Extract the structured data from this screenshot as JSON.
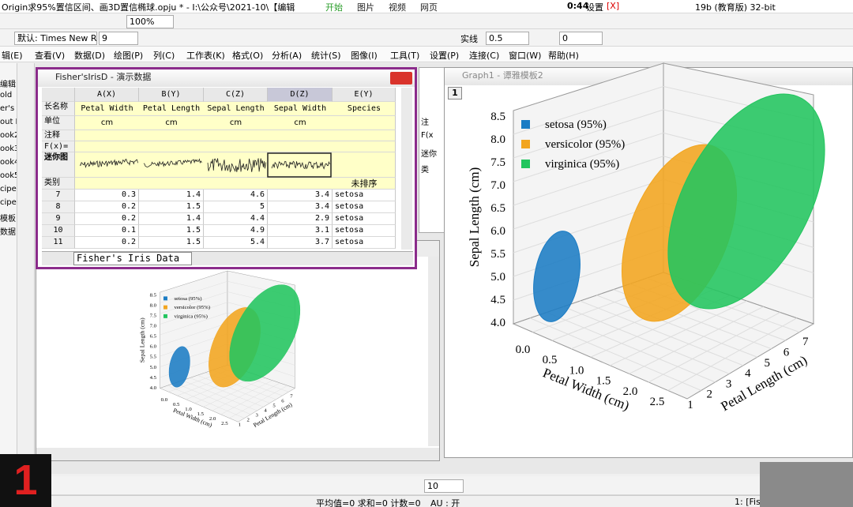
{
  "app_title": "Origin求95%置信区间、画3D置信椭球.opju * - I:\\公众号\\2021-10\\【编辑",
  "top_overlay": {
    "items": [
      "开始",
      "图片",
      "视频",
      "网页"
    ],
    "time": "0:44",
    "settings": "设置",
    "close": "[X]",
    "edition": "19b (教育版) 32-bit"
  },
  "toolbar": {
    "zoom": "100%",
    "font": "默认: Times New R",
    "font_size": "9",
    "line_style": "实线",
    "line_width": "0.5",
    "field": "0",
    "size_field": "10"
  },
  "menu": [
    "辑(E)",
    "查看(V)",
    "数据(D)",
    "绘图(P)",
    "列(C)",
    "工作表(K)",
    "格式(O)",
    "分析(A)",
    "统计(S)",
    "图像(I)",
    "工具(T)",
    "设置(P)",
    "连接(C)",
    "窗口(W)",
    "帮助(H)"
  ],
  "left_panel": [
    "编辑",
    "old",
    "er's",
    "out I",
    "ook2",
    "ook3",
    "ook4",
    "ook5",
    "cipe",
    "cipe",
    "模板",
    "数据"
  ],
  "worksheet": {
    "title": "Fisher'sIrisD - 演示数据",
    "columns": [
      "A(X)",
      "B(Y)",
      "C(Z)",
      "D(Z)",
      "E(Y)"
    ],
    "row_headers": [
      "长名称",
      "单位",
      "注释",
      "F(x)=",
      "迷你图",
      "类别"
    ],
    "long_names": [
      "Petal Width",
      "Petal Length",
      "Sepal Length",
      "Sepal Width",
      "Species"
    ],
    "units": [
      "cm",
      "cm",
      "cm",
      "cm"
    ],
    "category_note": "未排序",
    "rows": [
      {
        "index": "7",
        "cells": [
          "0.3",
          "1.4",
          "4.6",
          "3.4",
          "setosa"
        ]
      },
      {
        "index": "8",
        "cells": [
          "0.2",
          "1.5",
          "5",
          "3.4",
          "setosa"
        ]
      },
      {
        "index": "9",
        "cells": [
          "0.2",
          "1.4",
          "4.4",
          "2.9",
          "setosa"
        ]
      },
      {
        "index": "10",
        "cells": [
          "0.1",
          "1.5",
          "4.9",
          "3.1",
          "setosa"
        ]
      },
      {
        "index": "11",
        "cells": [
          "0.2",
          "1.5",
          "5.4",
          "3.7",
          "setosa"
        ]
      }
    ],
    "sheet_tab": "Fisher's Iris Data"
  },
  "back_window_labels": [
    "注",
    "F(x",
    "迷你",
    "类"
  ],
  "graph": {
    "title": "Graph1 - 谭雅模板2",
    "layer": "1",
    "legend": [
      "setosa (95%)",
      "versicolor (95%)",
      "virginica (95%)"
    ],
    "z_label": "Sepal Length (cm)",
    "x_label": "Petal Width (cm)",
    "y_label": "Petal Length (cm)",
    "zticks": [
      "4.0",
      "4.5",
      "5.0",
      "5.5",
      "6.0",
      "6.5",
      "7.0",
      "7.5",
      "8.0",
      "8.5"
    ],
    "xticks": [
      "0.0",
      "0.5",
      "1.0",
      "1.5",
      "2.0",
      "2.5"
    ],
    "yticks": [
      "1",
      "2",
      "3",
      "4",
      "5",
      "6",
      "7"
    ]
  },
  "status": {
    "stats": "平均值=0 求和=0 计数=0",
    "au": "AU : 开",
    "sheet": "1: [FisI"
  },
  "badge": "1"
}
